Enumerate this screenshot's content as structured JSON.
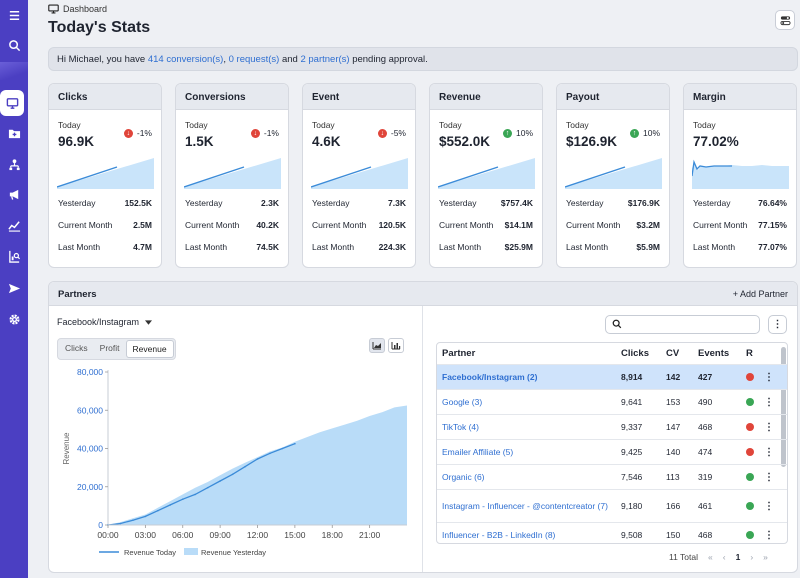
{
  "breadcrumb": {
    "label": "Dashboard"
  },
  "page_title": "Today's Stats",
  "greeting": {
    "prefix": "Hi Michael, you have ",
    "conversions": "414 conversion(s)",
    "sep1": ", ",
    "requests": "0 request(s)",
    "sep2": " and ",
    "partners": "2 partner(s)",
    "suffix": " pending approval."
  },
  "cards": [
    {
      "title": "Clicks",
      "today_label": "Today",
      "value": "96.9K",
      "delta": "-1%",
      "dir": "down",
      "yesterday_label": "Yesterday",
      "yesterday": "152.5K",
      "cm_label": "Current Month",
      "current_month": "2.5M",
      "lm_label": "Last Month",
      "last_month": "4.7M"
    },
    {
      "title": "Conversions",
      "today_label": "Today",
      "value": "1.5K",
      "delta": "-1%",
      "dir": "down",
      "yesterday_label": "Yesterday",
      "yesterday": "2.3K",
      "cm_label": "Current Month",
      "current_month": "40.2K",
      "lm_label": "Last Month",
      "last_month": "74.5K"
    },
    {
      "title": "Event",
      "today_label": "Today",
      "value": "4.6K",
      "delta": "-5%",
      "dir": "down",
      "yesterday_label": "Yesterday",
      "yesterday": "7.3K",
      "cm_label": "Current Month",
      "current_month": "120.5K",
      "lm_label": "Last Month",
      "last_month": "224.3K"
    },
    {
      "title": "Revenue",
      "today_label": "Today",
      "value": "$552.0K",
      "delta": "10%",
      "dir": "up",
      "yesterday_label": "Yesterday",
      "yesterday": "$757.4K",
      "cm_label": "Current Month",
      "current_month": "$14.1M",
      "lm_label": "Last Month",
      "last_month": "$25.9M"
    },
    {
      "title": "Payout",
      "today_label": "Today",
      "value": "$126.9K",
      "delta": "10%",
      "dir": "up",
      "yesterday_label": "Yesterday",
      "yesterday": "$176.9K",
      "cm_label": "Current Month",
      "current_month": "$3.2M",
      "lm_label": "Last Month",
      "last_month": "$5.9M"
    },
    {
      "title": "Margin",
      "today_label": "Today",
      "value": "77.02%",
      "delta": "",
      "dir": "none",
      "yesterday_label": "Yesterday",
      "yesterday": "76.64%",
      "cm_label": "Current Month",
      "current_month": "77.15%",
      "lm_label": "Last Month",
      "last_month": "77.07%"
    }
  ],
  "partners_panel": {
    "title": "Partners",
    "add_label": "+ Add Partner",
    "selected_partner": "Facebook/Instagram",
    "metric_tabs": [
      "Clicks",
      "Profit",
      "Revenue"
    ],
    "active_tab": "Revenue",
    "search_placeholder": "",
    "table": {
      "headers": [
        "Partner",
        "Clicks",
        "CV",
        "Events",
        "R"
      ],
      "rows": [
        {
          "partner": "Facebook/Instagram (2)",
          "clicks": "8,914",
          "cv": "142",
          "events": "427",
          "status": "red"
        },
        {
          "partner": "Google (3)",
          "clicks": "9,641",
          "cv": "153",
          "events": "490",
          "status": "green"
        },
        {
          "partner": "TikTok (4)",
          "clicks": "9,337",
          "cv": "147",
          "events": "468",
          "status": "red"
        },
        {
          "partner": "Emailer Affiliate (5)",
          "clicks": "9,425",
          "cv": "140",
          "events": "474",
          "status": "red"
        },
        {
          "partner": "Organic (6)",
          "clicks": "7,546",
          "cv": "113",
          "events": "319",
          "status": "green"
        },
        {
          "partner": "Instagram - Influencer - @contentcreator (7)",
          "clicks": "9,180",
          "cv": "166",
          "events": "461",
          "status": "green"
        },
        {
          "partner": "Influencer - B2B - LinkedIn (8)",
          "clicks": "9,508",
          "cv": "150",
          "events": "468",
          "status": "green"
        }
      ]
    },
    "pager": {
      "total": "11 Total",
      "first": "«",
      "prev": "‹",
      "page": "1",
      "next": "›",
      "last": "»"
    }
  },
  "colors": {
    "accent": "#4b3fc2",
    "link": "#2f6fd1",
    "area": "#b9dcf8",
    "line": "#3b8bd8"
  },
  "chart_data": {
    "type": "area",
    "ylabel": "Revenue",
    "xlabel": "",
    "ylim": [
      0,
      80000
    ],
    "yticks": [
      0,
      20000,
      40000,
      60000,
      80000
    ],
    "ytick_labels": [
      "0",
      "20,000",
      "40,000",
      "60,000",
      "80,000"
    ],
    "xticks": [
      "00:00",
      "03:00",
      "06:00",
      "09:00",
      "12:00",
      "15:00",
      "18:00",
      "21:00"
    ],
    "legend": [
      "Revenue Today",
      "Revenue Yesterday"
    ],
    "series": [
      {
        "name": "Revenue Today",
        "hours": [
          0,
          1,
          2,
          3,
          4,
          5,
          6,
          7,
          8,
          9,
          10,
          11,
          12,
          13,
          14,
          15
        ],
        "values": [
          0,
          800,
          2500,
          4500,
          7500,
          10500,
          13500,
          16000,
          19500,
          23000,
          26500,
          30500,
          34500,
          37500,
          40000,
          42500
        ]
      },
      {
        "name": "Revenue Yesterday",
        "hours": [
          0,
          1,
          2,
          3,
          4,
          5,
          6,
          7,
          8,
          9,
          10,
          11,
          12,
          13,
          14,
          15,
          16,
          17,
          18,
          19,
          20,
          21,
          22,
          23,
          24
        ],
        "values": [
          0,
          1500,
          3500,
          5500,
          9000,
          12500,
          16000,
          19500,
          22500,
          26000,
          29500,
          32500,
          35500,
          38500,
          40500,
          43500,
          46000,
          48500,
          50500,
          52500,
          54500,
          57000,
          59000,
          61500,
          62500
        ]
      }
    ]
  }
}
